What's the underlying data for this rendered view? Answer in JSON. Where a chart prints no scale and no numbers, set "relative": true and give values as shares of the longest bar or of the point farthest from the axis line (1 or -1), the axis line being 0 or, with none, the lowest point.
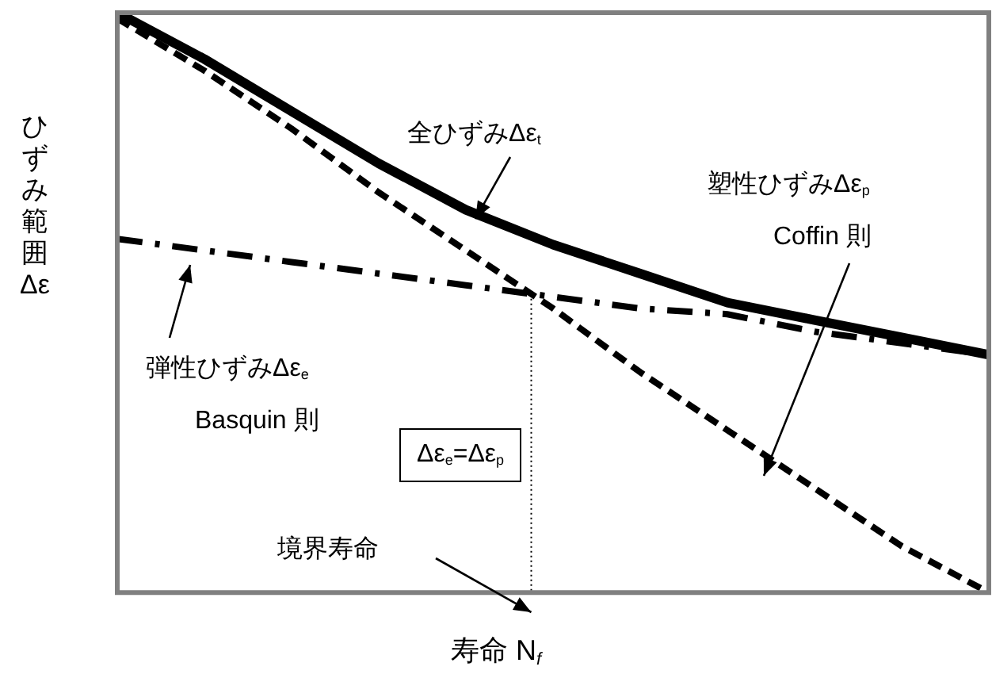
{
  "chart_data": {
    "type": "line",
    "relative": true,
    "xlabel": "寿命 N$_{f}$",
    "ylabel": "ひずみ範囲Δε",
    "grid": false,
    "legend": false,
    "marker": "none",
    "categories": [
      null,
      null,
      null,
      null,
      null,
      null,
      null,
      null,
      null,
      null,
      null
    ],
    "series": [
      {
        "color": "#000000",
        "line_style": "solid",
        "values": [
          1.0,
          0.92,
          0.83,
          0.74,
          0.66,
          0.6,
          0.55,
          0.5,
          0.47,
          0.44,
          0.41
        ]
      },
      {
        "color": "#000000",
        "line_style": "dashdot",
        "values": [
          0.61,
          0.59,
          0.57,
          0.55,
          0.53,
          0.51,
          0.49,
          0.48,
          0.45,
          0.43,
          0.41
        ]
      },
      {
        "color": "#000000",
        "line_style": "dashed",
        "values": [
          0.99,
          0.9,
          0.8,
          0.69,
          0.59,
          0.49,
          0.38,
          0.28,
          0.18,
          0.08,
          0
        ]
      }
    ],
    "annotations": [
      "全ひずみΔε$_{t}$",
      "弾性ひずみΔε$_{e}$",
      "Basquin 則",
      "塑性ひずみΔε$_{p}$",
      "Coffin 則",
      "Δε$_{e}$=Δε$_{p}$",
      "境界寿命"
    ]
  }
}
